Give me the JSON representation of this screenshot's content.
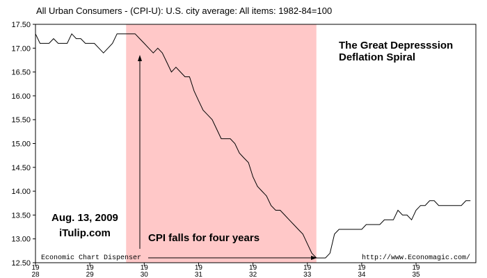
{
  "chart_data": {
    "type": "line",
    "title": "All Urban Consumers - (CPI-U): U.S. city average: All items: 1982-84=100",
    "xlabel": "",
    "ylabel": "",
    "xlim": [
      1928.0,
      1936.1
    ],
    "ylim": [
      12.5,
      17.5
    ],
    "y_ticks": [
      "17.50",
      "17.00",
      "16.50",
      "16.00",
      "15.50",
      "15.00",
      "14.50",
      "14.00",
      "13.50",
      "13.00",
      "12.50"
    ],
    "x_ticks": [
      {
        "year": 1928,
        "top": "19",
        "bottom": "28"
      },
      {
        "year": 1929,
        "top": "19",
        "bottom": "29"
      },
      {
        "year": 1930,
        "top": "19",
        "bottom": "30"
      },
      {
        "year": 1931,
        "top": "19",
        "bottom": "31"
      },
      {
        "year": 1932,
        "top": "19",
        "bottom": "32"
      },
      {
        "year": 1933,
        "top": "19",
        "bottom": "33"
      },
      {
        "year": 1934,
        "top": "19",
        "bottom": "34"
      },
      {
        "year": 1935,
        "top": "19",
        "bottom": "35"
      }
    ],
    "highlight_range": [
      1929.667,
      1933.167
    ],
    "highlight_color": "#ffc8c8",
    "line_color": "#000000",
    "series": [
      {
        "x": [
          1928.0,
          1928.083,
          1928.167,
          1928.25,
          1928.333,
          1928.417,
          1928.5,
          1928.583,
          1928.667,
          1928.75,
          1928.833,
          1928.917,
          1929.0,
          1929.083,
          1929.167,
          1929.25,
          1929.333,
          1929.417,
          1929.5,
          1929.583,
          1929.667,
          1929.75,
          1929.833,
          1929.917,
          1930.0,
          1930.083,
          1930.167,
          1930.25,
          1930.333,
          1930.417,
          1930.5,
          1930.583,
          1930.667,
          1930.75,
          1930.833,
          1930.917,
          1931.0,
          1931.083,
          1931.167,
          1931.25,
          1931.333,
          1931.417,
          1931.5,
          1931.583,
          1931.667,
          1931.75,
          1931.833,
          1931.917,
          1932.0,
          1932.083,
          1932.167,
          1932.25,
          1932.333,
          1932.417,
          1932.5,
          1932.583,
          1932.667,
          1932.75,
          1932.833,
          1932.917,
          1933.0,
          1933.083,
          1933.167,
          1933.25,
          1933.333,
          1933.417,
          1933.5,
          1933.583,
          1933.667,
          1933.75,
          1933.833,
          1933.917,
          1934.0,
          1934.083,
          1934.167,
          1934.25,
          1934.333,
          1934.417,
          1934.5,
          1934.583,
          1934.667,
          1934.75,
          1934.833,
          1934.917,
          1935.0,
          1935.083,
          1935.167,
          1935.25,
          1935.333,
          1935.417,
          1935.5,
          1935.583,
          1935.667,
          1935.75,
          1935.833,
          1935.917,
          1936.0
        ],
        "y": [
          17.3,
          17.1,
          17.1,
          17.1,
          17.2,
          17.1,
          17.1,
          17.1,
          17.3,
          17.2,
          17.2,
          17.1,
          17.1,
          17.1,
          17.0,
          16.9,
          17.0,
          17.1,
          17.3,
          17.3,
          17.3,
          17.3,
          17.3,
          17.2,
          17.1,
          17.0,
          16.9,
          17.0,
          16.9,
          16.7,
          16.5,
          16.6,
          16.5,
          16.4,
          16.4,
          16.1,
          15.9,
          15.7,
          15.6,
          15.5,
          15.3,
          15.1,
          15.1,
          15.1,
          15.0,
          14.8,
          14.7,
          14.6,
          14.3,
          14.1,
          14.0,
          13.9,
          13.7,
          13.6,
          13.6,
          13.5,
          13.4,
          13.3,
          13.2,
          13.1,
          12.9,
          12.7,
          12.6,
          12.6,
          12.6,
          12.7,
          13.1,
          13.2,
          13.2,
          13.2,
          13.2,
          13.2,
          13.2,
          13.3,
          13.3,
          13.3,
          13.3,
          13.4,
          13.4,
          13.4,
          13.6,
          13.5,
          13.5,
          13.4,
          13.6,
          13.7,
          13.7,
          13.8,
          13.8,
          13.7,
          13.7,
          13.7,
          13.7,
          13.7,
          13.7,
          13.8,
          13.8
        ]
      }
    ]
  },
  "annotations": {
    "heading_line1": "The Great Depresssion",
    "heading_line2": "Deflation Spiral",
    "date": "Aug. 13, 2009",
    "site": "iTulip.com",
    "callout": "CPI falls for four years",
    "source_left": "Economic Chart Dispenser",
    "source_right": "http://www.Economagic.com/"
  }
}
